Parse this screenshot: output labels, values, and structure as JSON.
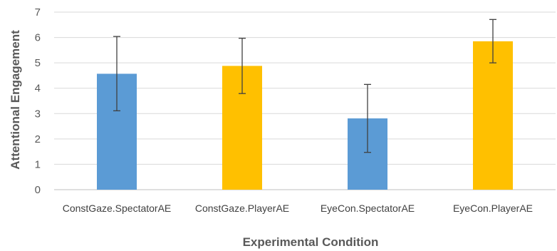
{
  "chart_data": {
    "type": "bar",
    "title": "",
    "xlabel": "Experimental Condition",
    "ylabel": "Attentional Engagement",
    "ylim": [
      0,
      7
    ],
    "yticks": [
      0,
      1,
      2,
      3,
      4,
      5,
      6,
      7
    ],
    "grid": true,
    "legend": "none",
    "categories": [
      "ConstGaze.SpectatorAE",
      "ConstGaze.PlayerAE",
      "EyeCon.SpectatorAE",
      "EyeCon.PlayerAE"
    ],
    "values": [
      4.57,
      4.88,
      2.81,
      5.85
    ],
    "error_low": [
      3.11,
      3.79,
      1.47,
      5.0
    ],
    "error_high": [
      6.04,
      5.97,
      4.15,
      6.71
    ],
    "colors": [
      "#5B9BD5",
      "#FFC000",
      "#5B9BD5",
      "#FFC000"
    ],
    "gridline_color": "#d9d9d9",
    "errorbar_color": "#404040"
  }
}
